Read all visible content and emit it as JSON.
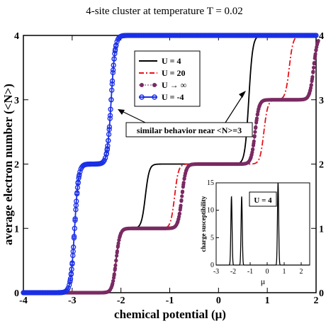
{
  "chart_data": [
    {
      "type": "line",
      "title": "4-site cluster at temperature T = 0.02",
      "xlabel": "chemical potential (μ)",
      "ylabel": "average electron number  (<N>)",
      "xlim": [
        -4,
        2
      ],
      "ylim": [
        0,
        4
      ],
      "x_ticks": [
        "-4",
        "-3",
        "-2",
        "-1",
        "0",
        "1",
        "2"
      ],
      "y_ticks": [
        "0",
        "1",
        "2",
        "3",
        "4"
      ],
      "y_ticks_right": [
        "0",
        "1",
        "2",
        "3",
        "4"
      ],
      "legend_position": "top-center",
      "annotation": "similar behavior near <N>=3",
      "series": [
        {
          "name": "U = 4",
          "color": "#000000",
          "style": "solid",
          "marker": "none",
          "steps": [
            [
              -2.1,
              1
            ],
            [
              -1.5,
              2
            ],
            [
              0.64,
              3
            ],
            [
              0.62,
              4
            ]
          ]
        },
        {
          "name": "U = 20",
          "color": "#e8111a",
          "style": "dash-dot",
          "marker": "none",
          "steps": [
            [
              -2.1,
              1
            ],
            [
              -0.9,
              2
            ],
            [
              0.93,
              3
            ],
            [
              1.45,
              4
            ]
          ]
        },
        {
          "name": "U → ∞",
          "color": "#7a2a62",
          "style": "dotted",
          "marker": "star",
          "steps": [
            [
              -2.1,
              1
            ],
            [
              -0.75,
              2
            ],
            [
              0.75,
              3
            ],
            [
              1.95,
              4
            ]
          ]
        },
        {
          "name": "U = -4",
          "color": "#1a2fe6",
          "style": "solid",
          "marker": "circle",
          "steps": [
            [
              -2.95,
              2
            ],
            [
              -2.2,
              4
            ]
          ]
        }
      ]
    },
    {
      "type": "line",
      "title": "",
      "legend": "U = 4",
      "xlabel": "μ",
      "ylabel": "charge susceptibility",
      "xlim": [
        -3,
        2.5
      ],
      "ylim": [
        0,
        15
      ],
      "x_ticks": [
        "-3",
        "-2",
        "-1",
        "0",
        "1",
        "2"
      ],
      "y_ticks": [
        "0",
        "5",
        "10",
        "15"
      ],
      "peaks": [
        {
          "x": -2.1,
          "height": 12.5
        },
        {
          "x": -1.5,
          "height": 12.5
        },
        {
          "x": 0.64,
          "height": 15
        }
      ]
    }
  ]
}
